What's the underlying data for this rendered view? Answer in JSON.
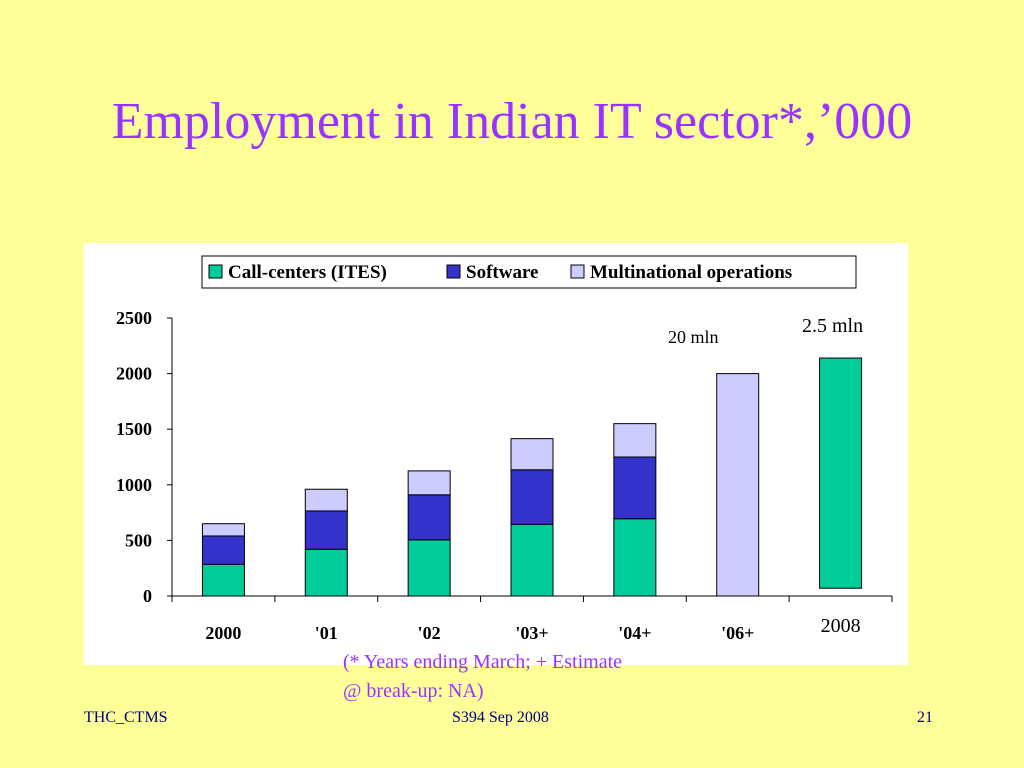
{
  "slide": {
    "title": "Employment in Indian IT sector*,’000",
    "footnote_line1": "(* Years ending March; + Estimate",
    "footnote_line2": "@ break-up: NA)",
    "footer_left": "THC_CTMS",
    "footer_center": "S394 Sep 2008",
    "footer_right": "21"
  },
  "colors": {
    "background": "#ffff99",
    "title": "#9933ff",
    "call_centers": "#00cc99",
    "software": "#3333cc",
    "multinational": "#ccccff"
  },
  "chart_data": {
    "type": "bar",
    "stacked": true,
    "categories": [
      "2000",
      "'01",
      "'02",
      "'03+",
      "'04+",
      "'06+",
      "2008"
    ],
    "series": [
      {
        "name": "Call-centers (ITES)",
        "values": [
          285,
          420,
          505,
          645,
          695,
          null,
          2070
        ],
        "color": "#00cc99"
      },
      {
        "name": "Software",
        "values": [
          255,
          345,
          405,
          490,
          555,
          null,
          null
        ],
        "color": "#3333cc"
      },
      {
        "name": "Multinational operations",
        "values": [
          110,
          195,
          215,
          280,
          300,
          2000,
          null
        ],
        "color": "#ccccff"
      }
    ],
    "ylim": [
      0,
      2500
    ],
    "yticks": [
      "0",
      "500",
      "1000",
      "1500",
      "2000",
      "2500"
    ],
    "bar_bases": [
      0,
      0,
      0,
      0,
      0,
      0,
      70
    ],
    "legend_position": "top",
    "annotations": [
      "20 mln",
      "2.5 mln"
    ],
    "grid": false
  }
}
